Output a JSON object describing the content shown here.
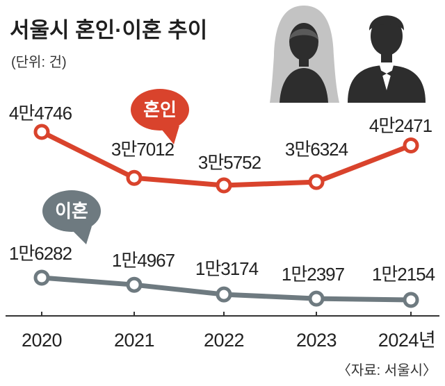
{
  "chart_data": {
    "type": "line",
    "title": "서울시 혼인·이혼 추이",
    "unit": "(단위: 건)",
    "categories": [
      "2020",
      "2021",
      "2022",
      "2023",
      "2024년"
    ],
    "series": [
      {
        "name": "혼인",
        "color": "#d9432c",
        "values": [
          44746,
          37012,
          35752,
          36324,
          42471
        ],
        "labels": [
          "4만4746",
          "3만7012",
          "3만5752",
          "3만6324",
          "4만2471"
        ]
      },
      {
        "name": "이혼",
        "color": "#6e7a80",
        "values": [
          16282,
          14967,
          13174,
          12397,
          12154
        ],
        "labels": [
          "1만6282",
          "1만4967",
          "1만3174",
          "1만2397",
          "1만2154"
        ]
      }
    ],
    "source": "〈자료: 서울시〉",
    "grid": false,
    "icons": [
      "bride-icon",
      "groom-icon"
    ]
  }
}
